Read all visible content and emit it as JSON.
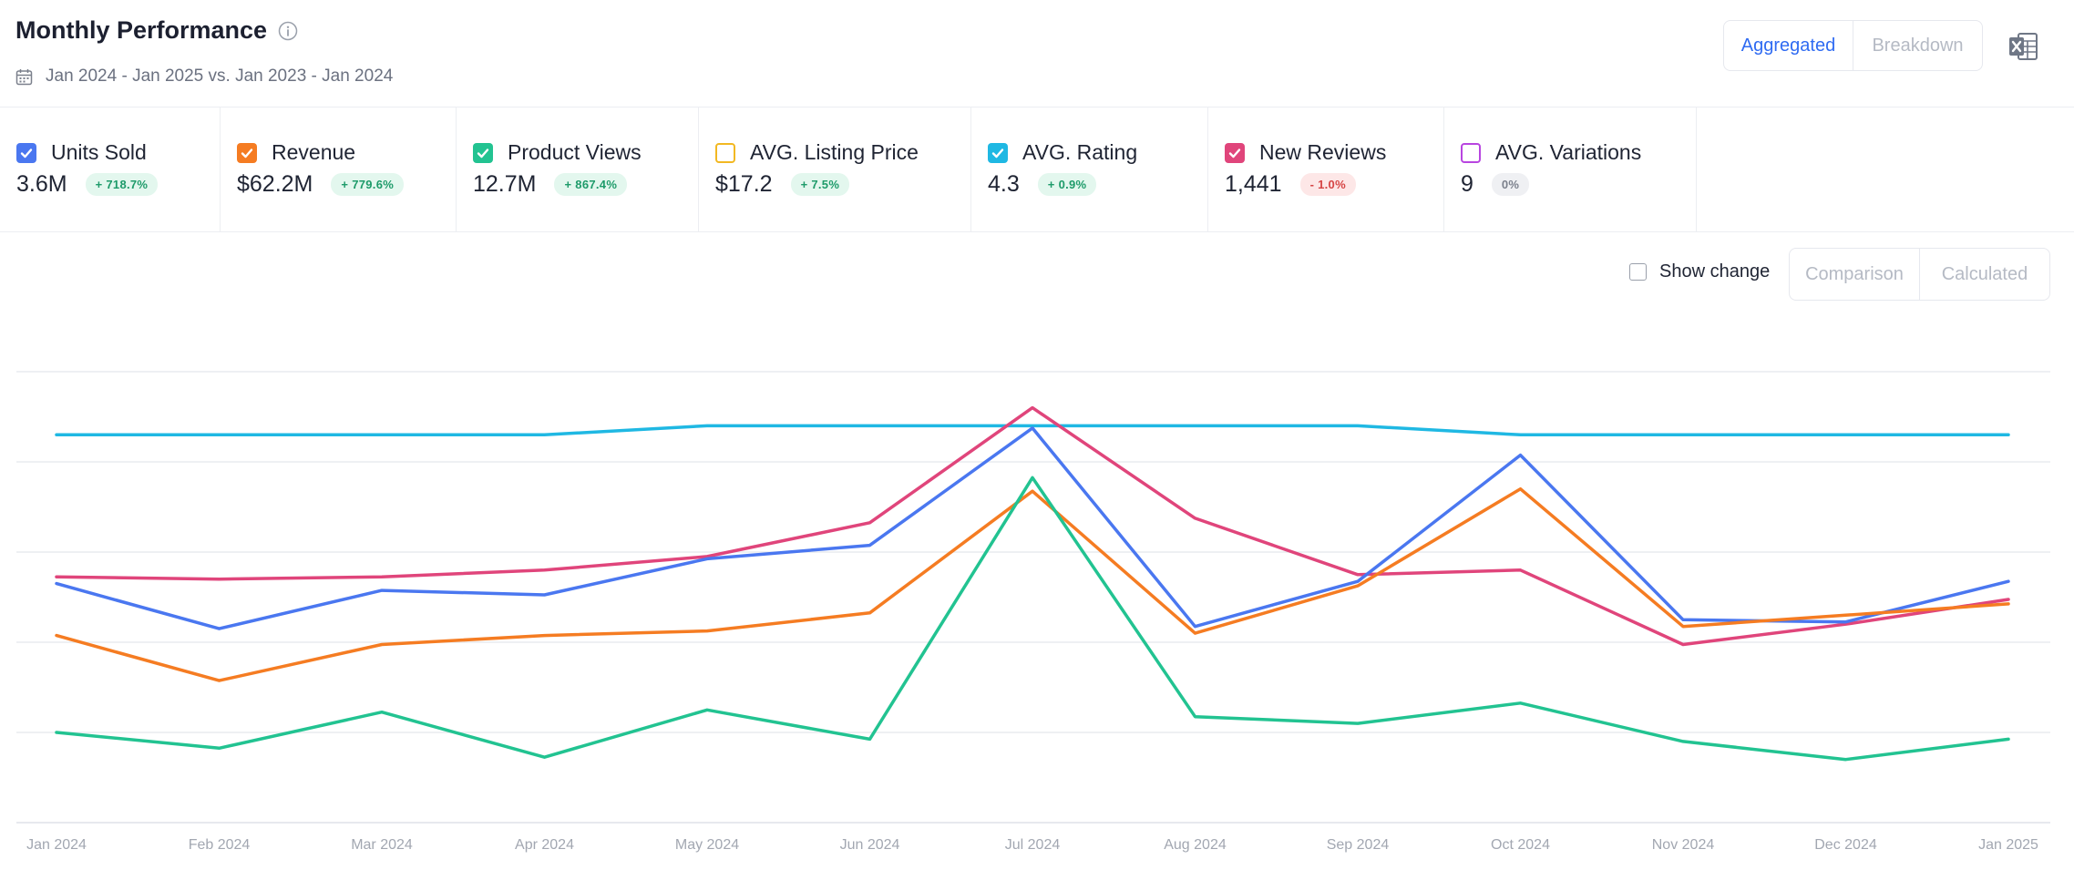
{
  "header": {
    "title": "Monthly Performance",
    "date_range": "Jan 2024 - Jan 2025 vs. Jan 2023 - Jan 2024",
    "view_toggle": {
      "active": "Aggregated",
      "inactive": "Breakdown"
    },
    "export_icon": "excel-export-icon"
  },
  "metrics": [
    {
      "label": "Units Sold",
      "value": "3.6M",
      "change": "+ 718.7%",
      "trend": "up",
      "checked": true,
      "color": "#4a77f0"
    },
    {
      "label": "Revenue",
      "value": "$62.2M",
      "change": "+ 779.6%",
      "trend": "up",
      "checked": true,
      "color": "#f57c22"
    },
    {
      "label": "Product Views",
      "value": "12.7M",
      "change": "+ 867.4%",
      "trend": "up",
      "checked": true,
      "color": "#22c391"
    },
    {
      "label": "AVG. Listing Price",
      "value": "$17.2",
      "change": "+ 7.5%",
      "trend": "up",
      "checked": false,
      "color": "#f2b822"
    },
    {
      "label": "AVG. Rating",
      "value": "4.3",
      "change": "+ 0.9%",
      "trend": "up",
      "checked": true,
      "color": "#1fb8e3"
    },
    {
      "label": "New Reviews",
      "value": "1,441",
      "change": "- 1.0%",
      "trend": "down",
      "checked": true,
      "color": "#e0457b"
    },
    {
      "label": "AVG. Variations",
      "value": "9",
      "change": "0%",
      "trend": "zero",
      "checked": false,
      "color": "#b845e0"
    }
  ],
  "controls": {
    "show_change_label": "Show change",
    "show_change_checked": false,
    "mode_options": [
      "Comparison",
      "Calculated"
    ]
  },
  "chart_data": {
    "type": "line",
    "categories": [
      "Jan 2024",
      "Feb 2024",
      "Mar 2024",
      "Apr 2024",
      "May 2024",
      "Jun 2024",
      "Jul 2024",
      "Aug 2024",
      "Sep 2024",
      "Oct 2024",
      "Nov 2024",
      "Dec 2024",
      "Jan 2025"
    ],
    "grid": true,
    "y_axis_labels": false,
    "series": [
      {
        "name": "AVG. Rating",
        "color": "#1fb8e3",
        "values": [
          86.0,
          86.0,
          86.0,
          86.0,
          88.0,
          88.0,
          88.0,
          88.0,
          88.0,
          86.0,
          86.0,
          86.0,
          86.0
        ]
      },
      {
        "name": "New Reviews",
        "color": "#e0457b",
        "values": [
          54.5,
          54.0,
          54.5,
          56.0,
          59.0,
          66.5,
          92.0,
          67.5,
          55.0,
          56.0,
          39.5,
          44.0,
          49.5
        ]
      },
      {
        "name": "Units Sold",
        "color": "#4a77f0",
        "values": [
          53.0,
          43.0,
          51.5,
          50.5,
          58.5,
          61.5,
          87.5,
          43.5,
          53.5,
          81.5,
          45.0,
          44.5,
          53.5
        ]
      },
      {
        "name": "Revenue",
        "color": "#f57c22",
        "values": [
          41.5,
          31.5,
          39.5,
          41.5,
          42.5,
          46.5,
          73.5,
          42.0,
          52.5,
          74.0,
          43.5,
          46.0,
          48.5
        ]
      },
      {
        "name": "Product Views",
        "color": "#22c391",
        "values": [
          20.0,
          16.5,
          24.5,
          14.5,
          25.0,
          18.5,
          76.5,
          23.5,
          22.0,
          26.5,
          18.0,
          14.0,
          18.5
        ]
      }
    ],
    "ylim": [
      0,
      100
    ]
  }
}
